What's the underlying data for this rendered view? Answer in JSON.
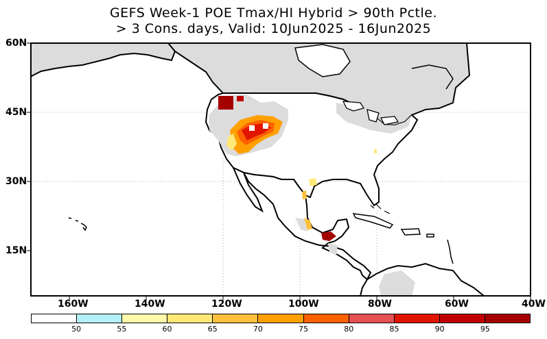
{
  "title": {
    "line1": "GEFS Week-1 POE Tmax/HI Hybrid > 90th Pctle.",
    "line2": "> 3 Cons. days, Valid: 10Jun2025 - 16Jun2025"
  },
  "map": {
    "lat_range": [
      5,
      60
    ],
    "lon_range": [
      -170,
      -40
    ],
    "lat_labels": [
      "60N",
      "45N",
      "30N",
      "15N"
    ],
    "lon_labels": [
      "160W",
      "140W",
      "120W",
      "100W",
      "80W",
      "60W",
      "40W"
    ],
    "colors": {
      "land_masked": "#dcdcdc",
      "ocean": "#ffffff",
      "coast": "#000000"
    }
  },
  "legend": {
    "colors": [
      "#ffffff",
      "#b4f0fa",
      "#fffaaa",
      "#ffe878",
      "#ffc03c",
      "#ffa000",
      "#ff6000",
      "#e65050",
      "#e11400",
      "#c00000",
      "#a50000"
    ],
    "labels": [
      "50",
      "55",
      "60",
      "65",
      "70",
      "75",
      "80",
      "85",
      "90",
      "95"
    ]
  }
}
